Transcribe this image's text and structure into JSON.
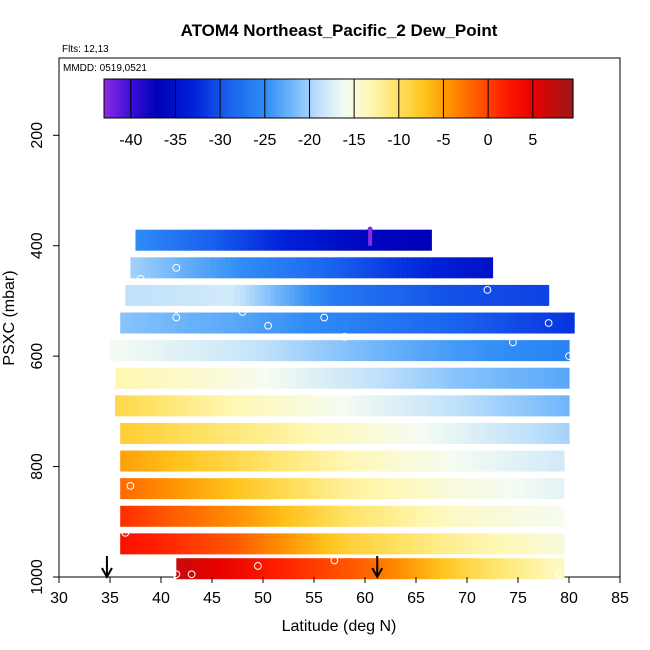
{
  "chart_data": {
    "type": "heatmap",
    "title": "ATOM4 Northeast_Pacific_2 Dew_Point",
    "flights_label": "Flts: 12,13",
    "date_label": "MMDD: 0519,0521",
    "xlabel": "Latitude (deg N)",
    "ylabel": "PSXC (mbar)",
    "xlim": [
      30,
      85
    ],
    "ylim": [
      1000,
      60
    ],
    "x_ticks": [
      "30",
      "35",
      "40",
      "45",
      "50",
      "55",
      "60",
      "65",
      "70",
      "75",
      "80",
      "85"
    ],
    "y_ticks": [
      "200",
      "400",
      "600",
      "800",
      "1000"
    ],
    "colorbar": {
      "min": -43,
      "max": 9.5,
      "ticks": [
        "-40",
        "-35",
        "-30",
        "-25",
        "-20",
        "-15",
        "-10",
        "-5",
        "0",
        "5"
      ],
      "stops": [
        [
          -43,
          "#8b2be2"
        ],
        [
          -40,
          "#3a0fd9"
        ],
        [
          -37,
          "#0000b8"
        ],
        [
          -33,
          "#0022d9"
        ],
        [
          -29,
          "#1a62ee"
        ],
        [
          -25,
          "#2f8cf5"
        ],
        [
          -22,
          "#6fb5fb"
        ],
        [
          -19,
          "#bfe1fb"
        ],
        [
          -16,
          "#f5fcf2"
        ],
        [
          -13,
          "#fff7b0"
        ],
        [
          -10,
          "#ffe060"
        ],
        [
          -7,
          "#ffc21a"
        ],
        [
          -4,
          "#ff8c00"
        ],
        [
          -1,
          "#ff5500"
        ],
        [
          2,
          "#ff1a00"
        ],
        [
          5,
          "#e60000"
        ],
        [
          9.5,
          "#9e1818"
        ]
      ]
    },
    "bands": [
      {
        "p": 390,
        "lat_start": 37.5,
        "lat_end": 66.5,
        "values": [
          -25,
          -29,
          -33,
          -36,
          -37
        ]
      },
      {
        "p": 440,
        "lat_start": 37,
        "lat_end": 72.5,
        "values": [
          -20,
          -24,
          -28,
          -32,
          -35
        ]
      },
      {
        "p": 490,
        "lat_start": 36.5,
        "lat_end": 78,
        "values": [
          -19,
          -18,
          -27,
          -30,
          -31
        ]
      },
      {
        "p": 540,
        "lat_start": 36,
        "lat_end": 80.5,
        "values": [
          -21,
          -23,
          -26,
          -29,
          -32
        ]
      },
      {
        "p": 590,
        "lat_start": 35,
        "lat_end": 80,
        "values": [
          -16,
          -18,
          -21,
          -24,
          -26
        ]
      },
      {
        "p": 640,
        "lat_start": 35.5,
        "lat_end": 80,
        "values": [
          -13,
          -15,
          -18,
          -21,
          -23
        ]
      },
      {
        "p": 690,
        "lat_start": 35.5,
        "lat_end": 80,
        "values": [
          -9,
          -13,
          -16,
          -19,
          -22
        ]
      },
      {
        "p": 740,
        "lat_start": 36,
        "lat_end": 80,
        "values": [
          -8,
          -11,
          -14,
          -17,
          -20
        ]
      },
      {
        "p": 790,
        "lat_start": 36,
        "lat_end": 79.5,
        "values": [
          -5,
          -9,
          -13,
          -16,
          -18
        ]
      },
      {
        "p": 840,
        "lat_start": 36,
        "lat_end": 79.5,
        "values": [
          -2,
          -7,
          -12,
          -15,
          -17
        ]
      },
      {
        "p": 890,
        "lat_start": 36,
        "lat_end": 79.5,
        "values": [
          1,
          -4,
          -10,
          -14,
          -16
        ]
      },
      {
        "p": 940,
        "lat_start": 36,
        "lat_end": 79.5,
        "values": [
          3,
          -1,
          -8,
          -12,
          -15
        ]
      },
      {
        "p": 985,
        "lat_start": 41.5,
        "lat_end": 79.5,
        "values": [
          7,
          2,
          -2,
          -9,
          -14
        ]
      }
    ],
    "points": [
      [
        41.5,
        440
      ],
      [
        38,
        460
      ],
      [
        41.5,
        515
      ],
      [
        41.5,
        530
      ],
      [
        48,
        520
      ],
      [
        50.5,
        545
      ],
      [
        56,
        530
      ],
      [
        58,
        565
      ],
      [
        72,
        480
      ],
      [
        74.5,
        575
      ],
      [
        78,
        540
      ],
      [
        80,
        600
      ],
      [
        37,
        835
      ],
      [
        36.5,
        920
      ],
      [
        35.5,
        955
      ],
      [
        41.5,
        995
      ],
      [
        43,
        995
      ],
      [
        49.5,
        980
      ],
      [
        57,
        970
      ],
      [
        79,
        995
      ]
    ],
    "purple_marker": {
      "lat": 60.5,
      "p_top": 370,
      "p_bottom": 400
    },
    "arrows": [
      34.7,
      61.2
    ]
  }
}
